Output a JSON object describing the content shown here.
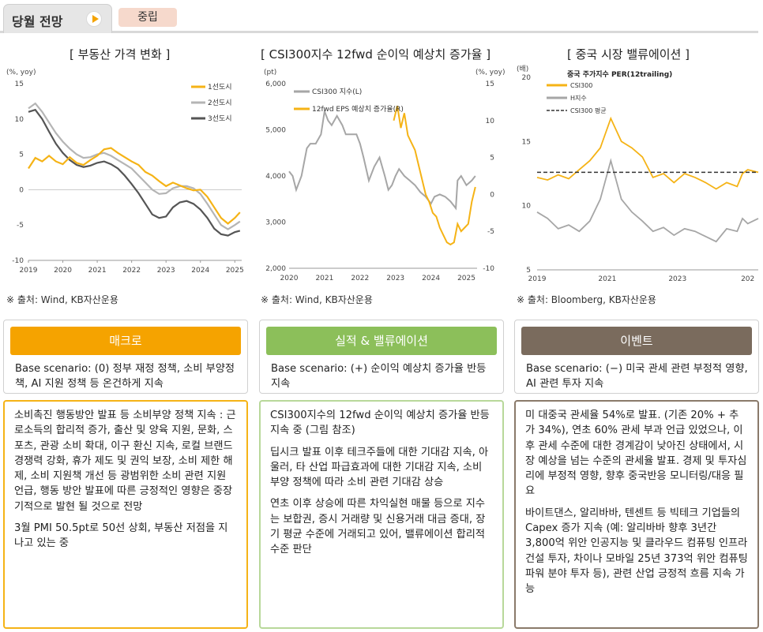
{
  "header": {
    "tab_label": "당월 전망",
    "pill_label": "중립"
  },
  "charts": {
    "left": {
      "title": "[ 부동산 가격 변화 ]",
      "unit": "(%, yoy)",
      "source": "※ 출처: Wind, KB자산운용",
      "y_ticks": [
        "15",
        "10",
        "5",
        "0",
        "-5",
        "-10"
      ],
      "x_ticks": [
        "2019",
        "2020",
        "2021",
        "2022",
        "2023",
        "2024",
        "2025"
      ]
    },
    "middle": {
      "title": "[ CSI300지수 12fwd 순이익 예상치 증가율 ]",
      "unit_left": "(pt)",
      "unit_right": "(%, yoy)",
      "source": "※ 출처: Wind, KB자산운용",
      "y_left_ticks": [
        "6,000",
        "5,000",
        "4,000",
        "3,000",
        "2,000"
      ],
      "y_right_ticks": [
        "15",
        "10",
        "5",
        "0",
        "-5",
        "-10"
      ],
      "x_ticks": [
        "2020",
        "2021",
        "2022",
        "2023",
        "2024",
        "2025"
      ]
    },
    "right": {
      "title": "[ 중국 시장 밸류에이션 ]",
      "unit": "(배)",
      "subtitle": "중국 주가지수 PER(12trailing)",
      "source": "※ 출처: Bloomberg, KB자산운용",
      "y_ticks": [
        "20",
        "15",
        "10",
        "5"
      ],
      "x_ticks": [
        "2019",
        "2021",
        "2023",
        "202"
      ]
    }
  },
  "chart_data": [
    {
      "type": "line",
      "title": "[ 부동산 가격 변화 ]",
      "ylabel": "(%, yoy)",
      "ylim": [
        -10,
        15
      ],
      "xlim": [
        2019,
        2025.2
      ],
      "legend_position": "top-right",
      "series": [
        {
          "name": "1선도시",
          "color": "#f5b316",
          "x": [
            2019.0,
            2019.2,
            2019.4,
            2019.6,
            2019.8,
            2020.0,
            2020.2,
            2020.4,
            2020.6,
            2020.8,
            2021.0,
            2021.2,
            2021.4,
            2021.6,
            2021.8,
            2022.0,
            2022.2,
            2022.4,
            2022.6,
            2022.8,
            2023.0,
            2023.2,
            2023.4,
            2023.6,
            2023.8,
            2024.0,
            2024.2,
            2024.4,
            2024.6,
            2024.8,
            2025.0,
            2025.15
          ],
          "y": [
            3.0,
            4.5,
            4.0,
            4.8,
            4.0,
            3.6,
            4.6,
            3.8,
            3.5,
            4.2,
            4.8,
            5.7,
            5.9,
            5.2,
            4.6,
            4.0,
            3.5,
            2.5,
            2.0,
            1.2,
            0.5,
            1.0,
            0.6,
            0.2,
            -0.1,
            0.0,
            -1.0,
            -2.5,
            -4.0,
            -4.8,
            -4.0,
            -3.2
          ]
        },
        {
          "name": "2선도시",
          "color": "#b5b5b5",
          "x": [
            2019.0,
            2019.2,
            2019.4,
            2019.6,
            2019.8,
            2020.0,
            2020.2,
            2020.4,
            2020.6,
            2020.8,
            2021.0,
            2021.2,
            2021.4,
            2021.6,
            2021.8,
            2022.0,
            2022.2,
            2022.4,
            2022.6,
            2022.8,
            2023.0,
            2023.2,
            2023.4,
            2023.6,
            2023.8,
            2024.0,
            2024.2,
            2024.4,
            2024.6,
            2024.8,
            2025.0,
            2025.15
          ],
          "y": [
            11.5,
            12.2,
            11.0,
            9.5,
            8.0,
            6.8,
            5.8,
            5.0,
            4.5,
            4.6,
            5.0,
            5.2,
            4.8,
            4.2,
            3.6,
            3.0,
            2.0,
            1.0,
            0.0,
            -0.6,
            -0.5,
            0.2,
            0.5,
            0.5,
            0.2,
            -0.6,
            -2.0,
            -3.5,
            -5.0,
            -5.6,
            -5.0,
            -4.5
          ]
        },
        {
          "name": "3선도시",
          "color": "#555555",
          "x": [
            2019.0,
            2019.2,
            2019.4,
            2019.6,
            2019.8,
            2020.0,
            2020.2,
            2020.4,
            2020.6,
            2020.8,
            2021.0,
            2021.2,
            2021.4,
            2021.6,
            2021.8,
            2022.0,
            2022.2,
            2022.4,
            2022.6,
            2022.8,
            2023.0,
            2023.2,
            2023.4,
            2023.6,
            2023.8,
            2024.0,
            2024.2,
            2024.4,
            2024.6,
            2024.8,
            2025.0,
            2025.15
          ],
          "y": [
            11.0,
            11.3,
            10.0,
            8.2,
            6.5,
            5.2,
            4.2,
            3.5,
            3.2,
            3.4,
            3.8,
            4.0,
            3.6,
            3.0,
            2.0,
            0.8,
            -0.5,
            -2.0,
            -3.5,
            -4.0,
            -3.8,
            -2.5,
            -1.8,
            -1.6,
            -2.0,
            -2.8,
            -4.0,
            -5.5,
            -6.3,
            -6.5,
            -6.0,
            -5.8
          ]
        }
      ]
    },
    {
      "type": "line",
      "title": "[ CSI300지수 12fwd 순이익 예상치 증가율 ]",
      "ylabel": "(pt)",
      "ylim": [
        2000,
        6000
      ],
      "y2lim": [
        -10,
        15
      ],
      "xlim": [
        2020,
        2025.3
      ],
      "legend_position": "top-left",
      "series": [
        {
          "name": "CSI300 지수(L)",
          "color": "#a6a6a6",
          "axis": "left",
          "x": [
            2020.0,
            2020.1,
            2020.2,
            2020.35,
            2020.5,
            2020.6,
            2020.75,
            2020.9,
            2021.0,
            2021.1,
            2021.2,
            2021.35,
            2021.5,
            2021.6,
            2021.75,
            2021.9,
            2022.0,
            2022.1,
            2022.25,
            2022.4,
            2022.55,
            2022.7,
            2022.8,
            2022.9,
            2023.0,
            2023.1,
            2023.25,
            2023.4,
            2023.55,
            2023.7,
            2023.85,
            2024.0,
            2024.1,
            2024.25,
            2024.4,
            2024.55,
            2024.7,
            2024.75,
            2024.85,
            2025.0,
            2025.15,
            2025.25
          ],
          "y": [
            4100,
            4000,
            3700,
            4000,
            4600,
            4700,
            4700,
            4900,
            5400,
            5200,
            5100,
            5300,
            5100,
            4900,
            4900,
            4900,
            4700,
            4400,
            3900,
            4200,
            4400,
            4000,
            3700,
            3800,
            4000,
            4150,
            4000,
            3900,
            3800,
            3650,
            3550,
            3400,
            3550,
            3600,
            3550,
            3450,
            3300,
            3900,
            4000,
            3800,
            3900,
            4000
          ]
        },
        {
          "name": "12fwd EPS 예상치 증가율(R)",
          "color": "#f5b316",
          "axis": "right",
          "x": [
            2022.95,
            2023.05,
            2023.15,
            2023.25,
            2023.35,
            2023.45,
            2023.55,
            2023.65,
            2023.75,
            2023.85,
            2023.95,
            2024.05,
            2024.15,
            2024.25,
            2024.35,
            2024.45,
            2024.55,
            2024.65,
            2024.75,
            2024.85,
            2024.95,
            2025.05,
            2025.15,
            2025.25
          ],
          "y": [
            10,
            12,
            9,
            11,
            8,
            7,
            6,
            4,
            2,
            0,
            -1,
            -2.5,
            -3,
            -4.5,
            -5.5,
            -6.5,
            -6.8,
            -6.5,
            -4,
            -5,
            -4.5,
            -4,
            -1,
            1
          ]
        }
      ]
    },
    {
      "type": "line",
      "title": "[ 중국 시장 밸류에이션 ]",
      "subtitle": "중국 주가지수 PER(12trailing)",
      "ylabel": "(배)",
      "ylim": [
        5,
        20
      ],
      "xlim": [
        2019,
        2025.3
      ],
      "legend_position": "top-left",
      "series": [
        {
          "name": "CSI300",
          "color": "#f5b316",
          "x": [
            2019.0,
            2019.3,
            2019.6,
            2019.9,
            2020.2,
            2020.5,
            2020.8,
            2021.1,
            2021.4,
            2021.7,
            2022.0,
            2022.3,
            2022.6,
            2022.9,
            2023.2,
            2023.5,
            2023.8,
            2024.1,
            2024.4,
            2024.7,
            2024.85,
            2025.0,
            2025.3
          ],
          "y": [
            12.2,
            12.0,
            12.4,
            12.1,
            12.8,
            13.5,
            14.5,
            16.8,
            15.0,
            14.5,
            13.8,
            12.2,
            12.5,
            11.8,
            12.5,
            12.2,
            11.8,
            11.3,
            11.8,
            11.5,
            12.5,
            12.8,
            12.6
          ]
        },
        {
          "name": "H지수",
          "color": "#a6a6a6",
          "x": [
            2019.0,
            2019.3,
            2019.6,
            2019.9,
            2020.2,
            2020.5,
            2020.8,
            2021.1,
            2021.4,
            2021.7,
            2022.0,
            2022.3,
            2022.6,
            2022.9,
            2023.2,
            2023.5,
            2023.8,
            2024.1,
            2024.4,
            2024.7,
            2024.85,
            2025.0,
            2025.3
          ],
          "y": [
            9.5,
            9.0,
            8.2,
            8.5,
            8.0,
            8.8,
            10.5,
            13.5,
            10.5,
            9.5,
            8.8,
            8.0,
            8.3,
            7.7,
            8.2,
            8.0,
            7.6,
            7.2,
            8.2,
            8.0,
            9.0,
            8.6,
            9.0
          ]
        },
        {
          "name": "CSI300 평균",
          "color": "#333333",
          "dashed": true,
          "x": [
            2019.0,
            2025.3
          ],
          "y": [
            12.6,
            12.6
          ]
        }
      ]
    }
  ],
  "columns": [
    {
      "title": "매크로",
      "color": "#f5a300",
      "scenario": "Base scenario: (0) 정부 재정 정책, 소비 부양정책, AI 지원 정책 등 온건하게 지속",
      "paragraphs": [
        "소비촉진 행동방안 발표 등 소비부양 정책 지속 : 근로소득의 합리적 증가, 출산 및 양육 지원, 문화, 스포츠, 관광 소비 확대, 이구 환신 지속, 로컬 브랜드 경쟁력 강화, 휴가 제도 및 권익 보장, 소비 제한 해제, 소비 지원책 개선 등 광범위한 소비 관련 지원 언급, 행동 방안 발표에 따른 긍정적인 영향은 중장기적으로 발현 될 것으로 전망",
        "3월 PMI 50.5pt로 50선 상회, 부동산 저점을 지나고 있는 중"
      ]
    },
    {
      "title": "실적 & 밸류에이션",
      "color": "#8cbf5a",
      "scenario": "Base scenario: (+) 순이익 예상치 증가율 반등 지속",
      "paragraphs": [
        "CSI300지수의 12fwd 순이익 예상치 증가율 반등 지속 중 (그림 참조)",
        "딥시크 발표 이후 테크주들에 대한 기대감 지속, 아울러, 타 산업 파급효과에 대한 기대감 지속, 소비 부양 정책에 따라 소비 관련 기대감 상승",
        "연초 이후 상승에 따른 차익실현 매물 등으로 지수는 보합권, 증시 거래량 및 신용거래 대금 증대, 장기 평균 수준에 거래되고 있어, 밸류에이션 합리적 수준 판단"
      ]
    },
    {
      "title": "이벤트",
      "color": "#7a6b5d",
      "scenario": "Base scenario: (−) 미국 관세 관련 부정적 영향, AI 관련 투자 지속",
      "paragraphs": [
        "미 대중국 관세율 54%로 발표. (기존 20% + 추가 34%), 연초 60% 관세 부과 언급 있었으나, 이후 관세 수준에 대한 경계감이 낮아진 상태에서, 시장 예상을 넘는 수준의 관세율 발표. 경제 및 투자심리에 부정적 영향, 향후 중국반응 모니터링/대응 필요",
        "바이트댄스, 알리바바, 텐센트 등 빅테크 기업들의 Capex 증가 지속 (예: 알리바바 향후 3년간 3,800억 위안 인공지능 및 클라우드 컴퓨팅 인프라 건설 투자, 차이나 모바일 25년 373억 위안 컴퓨팅 파워 분야 투자 등), 관련 산업 긍정적 흐름 지속 가능"
      ]
    }
  ]
}
